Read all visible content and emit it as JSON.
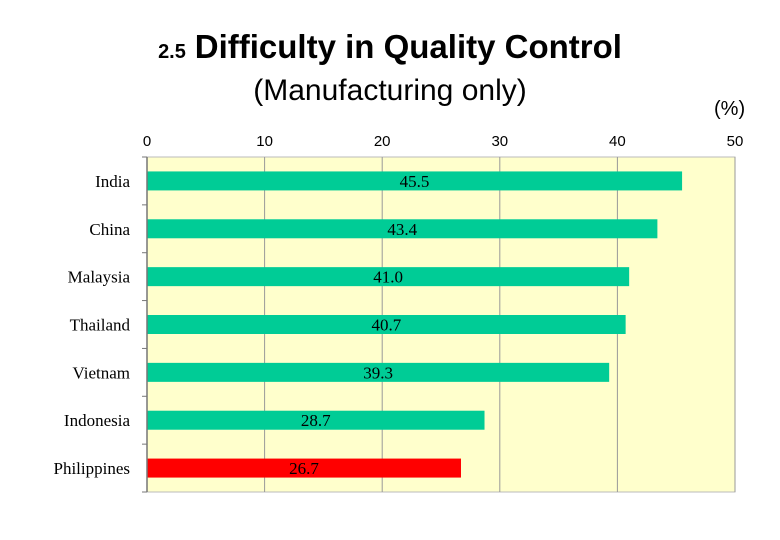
{
  "chart_data": {
    "type": "bar",
    "orientation": "horizontal",
    "title_number": "2.5",
    "title": "Difficulty in Quality Control",
    "subtitle": "(Manufacturing only)",
    "unit": "(%)",
    "xlim": [
      0,
      50
    ],
    "xticks": [
      "0",
      "10",
      "20",
      "30",
      "40",
      "50"
    ],
    "categories": [
      "India",
      "China",
      "Malaysia",
      "Thailand",
      "Vietnam",
      "Indonesia",
      "Philippines"
    ],
    "values": [
      45.5,
      43.4,
      41.0,
      40.7,
      39.3,
      28.7,
      26.7
    ],
    "value_labels": [
      "45.5",
      "43.4",
      "41.0",
      "40.7",
      "39.3",
      "28.7",
      "26.7"
    ],
    "bar_colors": [
      "#00cc96",
      "#00cc96",
      "#00cc96",
      "#00cc96",
      "#00cc96",
      "#00cc96",
      "#ff0000"
    ],
    "plot_background": "#ffffcc",
    "grid": true
  }
}
